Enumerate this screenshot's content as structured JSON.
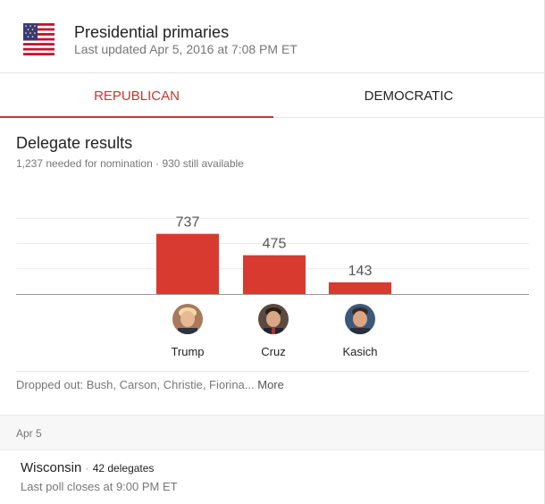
{
  "header": {
    "flag_icon": "us-flag-icon",
    "title": "Presidential primaries",
    "updated": "Last updated Apr 5, 2016 at 7:08 PM ET"
  },
  "tabs": [
    {
      "label": "REPUBLICAN",
      "active": true
    },
    {
      "label": "DEMOCRATIC",
      "active": false
    }
  ],
  "results": {
    "title": "Delegate results",
    "subtitle": "1,237 needed for nomination · 930 still available"
  },
  "colors": {
    "accent": "#c5392c",
    "bar": "#d93a2f"
  },
  "chart_data": {
    "type": "bar",
    "categories": [
      "Trump",
      "Cruz",
      "Kasich"
    ],
    "values": [
      737,
      475,
      143
    ],
    "title": "",
    "xlabel": "",
    "ylabel": "",
    "ylim": [
      0,
      1237
    ],
    "grid": true
  },
  "candidates": [
    {
      "name": "Trump",
      "avatar_icon": "trump-avatar"
    },
    {
      "name": "Cruz",
      "avatar_icon": "cruz-avatar"
    },
    {
      "name": "Kasich",
      "avatar_icon": "kasich-avatar"
    }
  ],
  "dropped": {
    "text": "Dropped out: Bush, Carson, Christie, Fiorina...",
    "more": "More"
  },
  "schedule": {
    "date": "Apr 5",
    "state": "Wisconsin",
    "separator": "·",
    "delegates": "42 delegates",
    "poll_close": "Last poll closes at 9:00 PM ET"
  }
}
